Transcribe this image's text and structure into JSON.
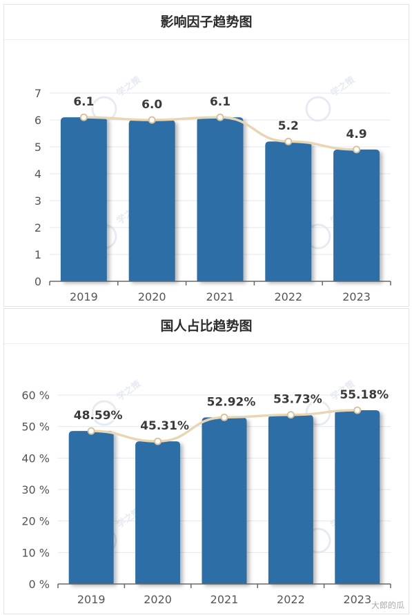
{
  "panels": [
    {
      "title": "影响因子趋势图",
      "chart_data": {
        "type": "bar",
        "categories": [
          "2019",
          "2020",
          "2021",
          "2022",
          "2023"
        ],
        "values": [
          6.1,
          6.0,
          6.1,
          5.2,
          4.9
        ],
        "data_labels": [
          "6.1",
          "6.0",
          "6.1",
          "5.2",
          "4.9"
        ],
        "ylim": [
          0,
          7
        ],
        "yticks": [
          0,
          1,
          2,
          3,
          4,
          5,
          6,
          7
        ],
        "ytick_labels": [
          "0",
          "1",
          "2",
          "3",
          "4",
          "5",
          "6",
          "7"
        ],
        "overlay_line": true,
        "grid": true,
        "bar_color": "#2e6ea6",
        "line_color": "#e8d6b3"
      }
    },
    {
      "title": "国人占比趋势图",
      "chart_data": {
        "type": "bar",
        "categories": [
          "2019",
          "2020",
          "2021",
          "2022",
          "2023"
        ],
        "values": [
          48.59,
          45.31,
          52.92,
          53.73,
          55.18
        ],
        "data_labels": [
          "48.59%",
          "45.31%",
          "52.92%",
          "53.73%",
          "55.18%"
        ],
        "ylim": [
          0,
          60
        ],
        "yticks": [
          0,
          10,
          20,
          30,
          40,
          50,
          60
        ],
        "ytick_labels": [
          "0 %",
          "10 %",
          "20 %",
          "30 %",
          "40 %",
          "50 %",
          "60 %"
        ],
        "overlay_line": true,
        "grid": true,
        "bar_color": "#2e6ea6",
        "line_color": "#e8d6b3"
      }
    }
  ],
  "watermark": {
    "logo_text": "学之策",
    "corner_text": "大郎的瓜"
  }
}
